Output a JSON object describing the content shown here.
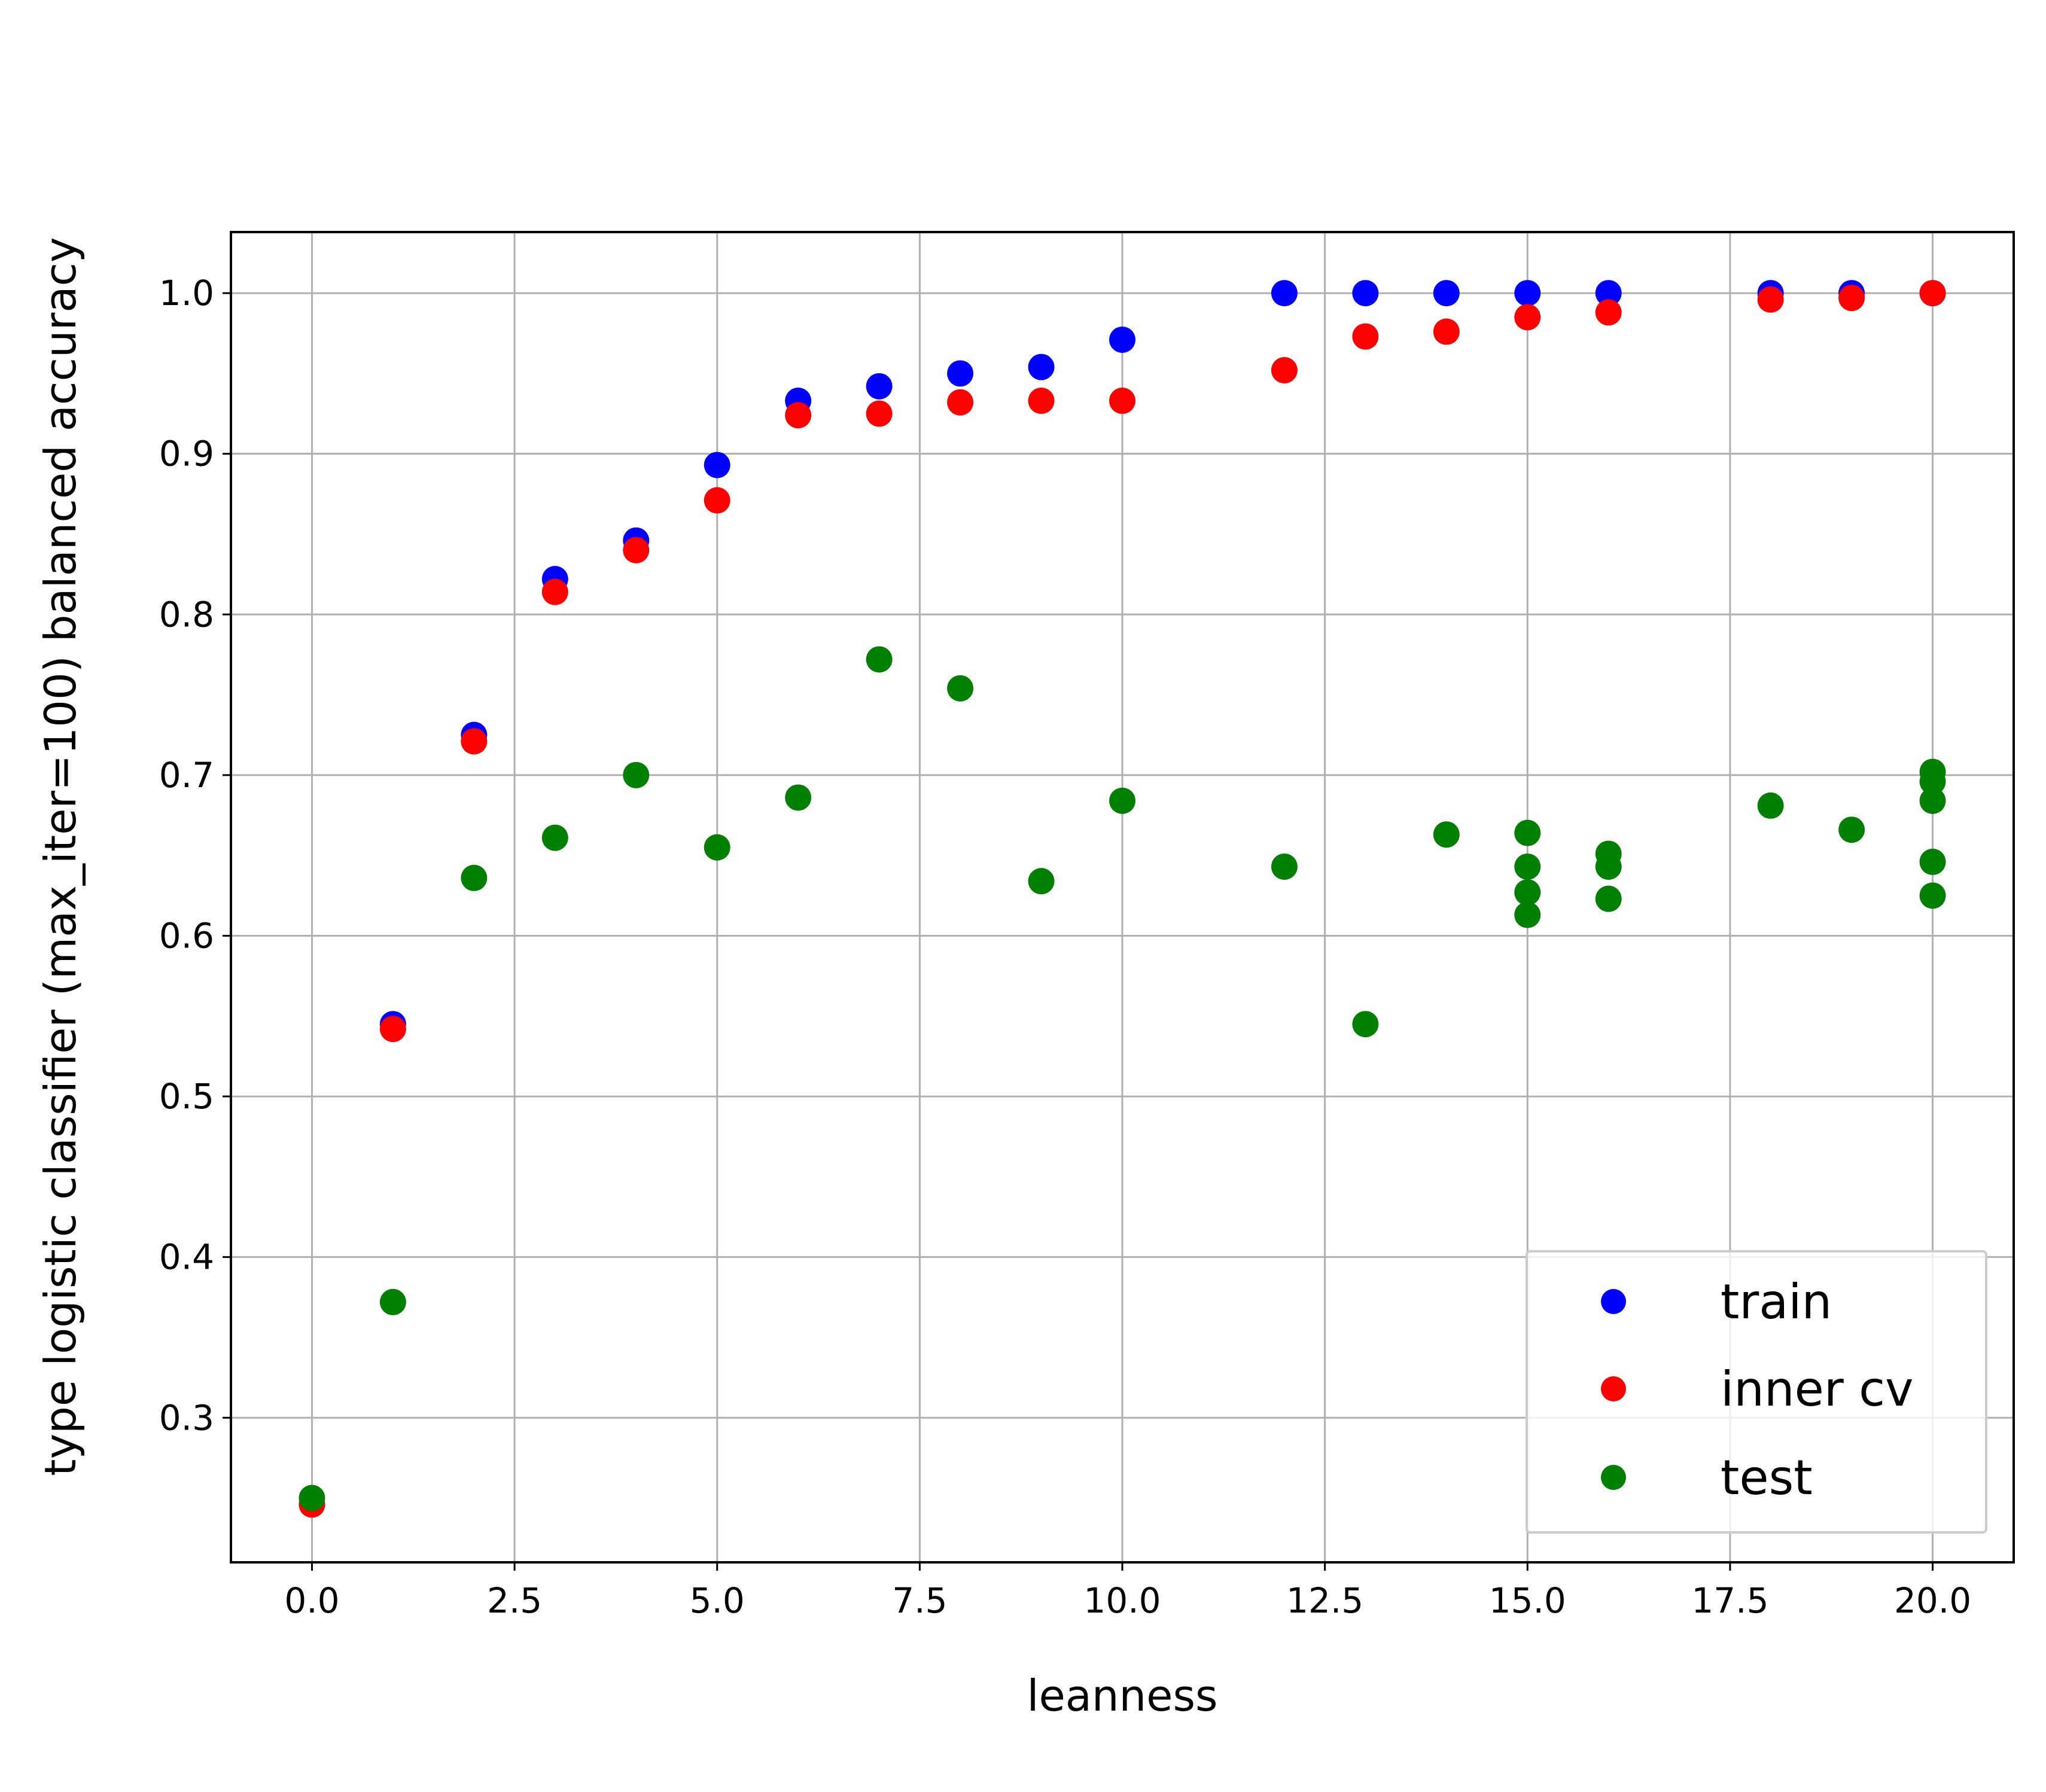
{
  "chart_data": {
    "type": "scatter",
    "title": "",
    "xlabel": "leanness",
    "ylabel": "type logistic classifier (max_iter=100) balanced accuracy",
    "xlim": [
      -1.0,
      21.0
    ],
    "ylim": [
      0.21,
      1.038
    ],
    "xticks": [
      "0.0",
      "2.5",
      "5.0",
      "7.5",
      "10.0",
      "12.5",
      "15.0",
      "17.5",
      "20.0"
    ],
    "xtick_values": [
      0,
      2.5,
      5,
      7.5,
      10,
      12.5,
      15,
      17.5,
      20
    ],
    "yticks": [
      "0.3",
      "0.4",
      "0.5",
      "0.6",
      "0.7",
      "0.8",
      "0.9",
      "1.0"
    ],
    "ytick_values": [
      0.3,
      0.4,
      0.5,
      0.6,
      0.7,
      0.8,
      0.9,
      1.0
    ],
    "grid": true,
    "legend_position": "lower-right",
    "series": [
      {
        "name": "train",
        "color": "#0000ff",
        "points": [
          [
            0,
            0.246
          ],
          [
            1,
            0.545
          ],
          [
            2,
            0.725
          ],
          [
            3,
            0.822
          ],
          [
            4,
            0.846
          ],
          [
            5,
            0.893
          ],
          [
            6,
            0.933
          ],
          [
            7,
            0.942
          ],
          [
            8,
            0.95
          ],
          [
            9,
            0.954
          ],
          [
            10,
            0.971
          ],
          [
            12,
            1.0
          ],
          [
            13,
            1.0
          ],
          [
            14,
            1.0
          ],
          [
            15,
            1.0
          ],
          [
            16,
            1.0
          ],
          [
            18,
            1.0
          ],
          [
            19,
            1.0
          ],
          [
            20,
            1.0
          ]
        ]
      },
      {
        "name": "inner cv",
        "color": "#ff0000",
        "points": [
          [
            0,
            0.246
          ],
          [
            1,
            0.542
          ],
          [
            2,
            0.721
          ],
          [
            3,
            0.814
          ],
          [
            4,
            0.84
          ],
          [
            5,
            0.871
          ],
          [
            6,
            0.924
          ],
          [
            7,
            0.925
          ],
          [
            8,
            0.932
          ],
          [
            9,
            0.933
          ],
          [
            10,
            0.933
          ],
          [
            12,
            0.952
          ],
          [
            13,
            0.973
          ],
          [
            14,
            0.976
          ],
          [
            15,
            0.985
          ],
          [
            16,
            0.988
          ],
          [
            18,
            0.996
          ],
          [
            19,
            0.997
          ],
          [
            20,
            1.0
          ]
        ]
      },
      {
        "name": "test",
        "color": "#008000",
        "points": [
          [
            0,
            0.25
          ],
          [
            1,
            0.372
          ],
          [
            2,
            0.636
          ],
          [
            3,
            0.661
          ],
          [
            4,
            0.7
          ],
          [
            5,
            0.655
          ],
          [
            6,
            0.686
          ],
          [
            7,
            0.772
          ],
          [
            8,
            0.754
          ],
          [
            9,
            0.634
          ],
          [
            10,
            0.684
          ],
          [
            12,
            0.643
          ],
          [
            13,
            0.545
          ],
          [
            14,
            0.663
          ],
          [
            15,
            0.664
          ],
          [
            15,
            0.643
          ],
          [
            15,
            0.627
          ],
          [
            15,
            0.613
          ],
          [
            16,
            0.651
          ],
          [
            16,
            0.643
          ],
          [
            16,
            0.623
          ],
          [
            18,
            0.681
          ],
          [
            19,
            0.666
          ],
          [
            20,
            0.702
          ],
          [
            20,
            0.696
          ],
          [
            20,
            0.684
          ],
          [
            20,
            0.646
          ],
          [
            20,
            0.625
          ]
        ]
      }
    ]
  }
}
